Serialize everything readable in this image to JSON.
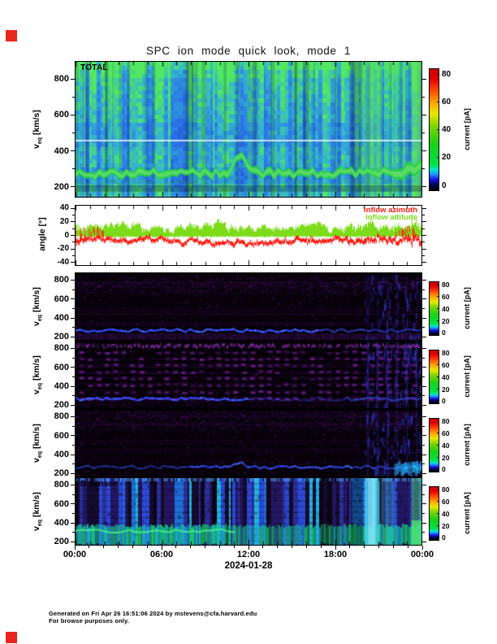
{
  "page": {
    "markers": {
      "color": "#e8261d"
    }
  },
  "chart_data": {
    "type": "heatmap",
    "title": "SPC ion mode quick look, mode 1",
    "x_axis": {
      "tick_labels": [
        "00:00",
        "06:00",
        "12:00",
        "18:00",
        "00:00"
      ],
      "date_label": "2024-01-28",
      "hours_span": 24,
      "minor_tick_interval_hours": 1
    },
    "velocity_axis": {
      "label_prefix": "v",
      "label_sub": "eq",
      "label_unit": " [km/s]",
      "tick_values": [
        200,
        400,
        600,
        800
      ]
    },
    "angle_axis": {
      "label": "angle [°]",
      "tick_values": [
        -40,
        -20,
        0,
        20,
        40
      ],
      "range_deg": [
        -45,
        45
      ]
    },
    "colorbar": {
      "label": "current [pA]",
      "tick_labels": [
        "0",
        "20",
        "40",
        "60",
        "80"
      ],
      "range_pA": [
        0,
        80
      ],
      "gradient_stops": [
        [
          "#000000",
          0
        ],
        [
          "#050560",
          0.05
        ],
        [
          "#1616e8",
          0.09
        ],
        [
          "#1e90ff",
          0.13
        ],
        [
          "#00e8d0",
          0.17
        ],
        [
          "#00e04a",
          0.21
        ],
        [
          "#18d018",
          0.38
        ],
        [
          "#7ed400",
          0.53
        ],
        [
          "#e8e800",
          0.63
        ],
        [
          "#ff9e00",
          0.73
        ],
        [
          "#ff4400",
          0.83
        ],
        [
          "#e00000",
          0.92
        ],
        [
          "#cc0000",
          1
        ]
      ]
    },
    "panels": [
      {
        "id": "total",
        "label": "TOTAL",
        "kind": "spectrogram",
        "y_range_kms": [
          140,
          900
        ],
        "features": {
          "white_reference_line_kms": 460,
          "proton_band_kms": [
            235,
            310
          ],
          "background": "moderate blue with vertical striping, cyan-green near top edge",
          "enhanced_interval": "approx 19:50-24:00 brighter green columns"
        }
      },
      {
        "id": "angle",
        "kind": "timeseries",
        "series": [
          {
            "name": "inflow azimuth",
            "color": "#ff1e14",
            "approx_range_deg": [
              -18,
              4
            ]
          },
          {
            "name": "inflow altitude",
            "color": "#7cdc1a",
            "approx_range_deg": [
              -2,
              25
            ]
          }
        ]
      },
      {
        "id": "a",
        "label": "A sensor",
        "kind": "spectrogram",
        "y_range_kms": [
          160,
          880
        ],
        "features": {
          "proton_band_kms": [
            245,
            285
          ],
          "background": "black with faint purple speckle, denser purple band at bottom"
        }
      },
      {
        "id": "b",
        "label": "B sensor",
        "kind": "spectrogram",
        "y_range_kms": [
          160,
          880
        ],
        "features": {
          "proton_band_kms": [
            235,
            280
          ],
          "background": "black with regular purple modulation grid"
        }
      },
      {
        "id": "c",
        "label": "C sensor",
        "kind": "spectrogram",
        "y_range_kms": [
          160,
          880
        ],
        "features": {
          "proton_band_kms": [
            235,
            280
          ],
          "background": "black with faint purple speckle",
          "bright_patch": "blue-cyan enhancement after ~22:00 at low velocities"
        }
      },
      {
        "id": "d",
        "label": "D sensor",
        "kind": "spectrogram",
        "y_range_kms": [
          160,
          880
        ],
        "features": {
          "proton_band_kms": [
            200,
            330
          ],
          "background": "bright blue vertical striping with green-teal low-velocity band",
          "bright_column": "cyan column near 20:00-21:00"
        }
      }
    ]
  },
  "footer": {
    "line1": "Generated on Fri Apr 26 16:51:06 2024 by mstevens@cfa.harvard.edu",
    "line2": "For browse purposes only."
  }
}
